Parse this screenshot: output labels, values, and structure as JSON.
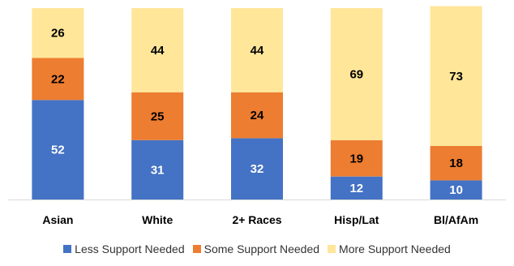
{
  "chart_data": {
    "type": "bar",
    "stacked": true,
    "categories": [
      "Asian",
      "White",
      "2+ Races",
      "Hisp/Lat",
      "Bl/AfAm"
    ],
    "series": [
      {
        "name": "Less Support Needed",
        "color": "#4472C4",
        "label_color": "#ffffff",
        "values": [
          52,
          31,
          32,
          12,
          10
        ]
      },
      {
        "name": "Some Support Needed",
        "color": "#ED7D31",
        "label_color": "#000000",
        "values": [
          22,
          25,
          24,
          19,
          18
        ]
      },
      {
        "name": "More Support Needed",
        "color": "#FFE699",
        "label_color": "#000000",
        "values": [
          26,
          44,
          44,
          69,
          73
        ]
      }
    ],
    "ylim": [
      0,
      100
    ],
    "grid": false,
    "legend_position": "bottom",
    "title": "",
    "xlabel": "",
    "ylabel": ""
  }
}
